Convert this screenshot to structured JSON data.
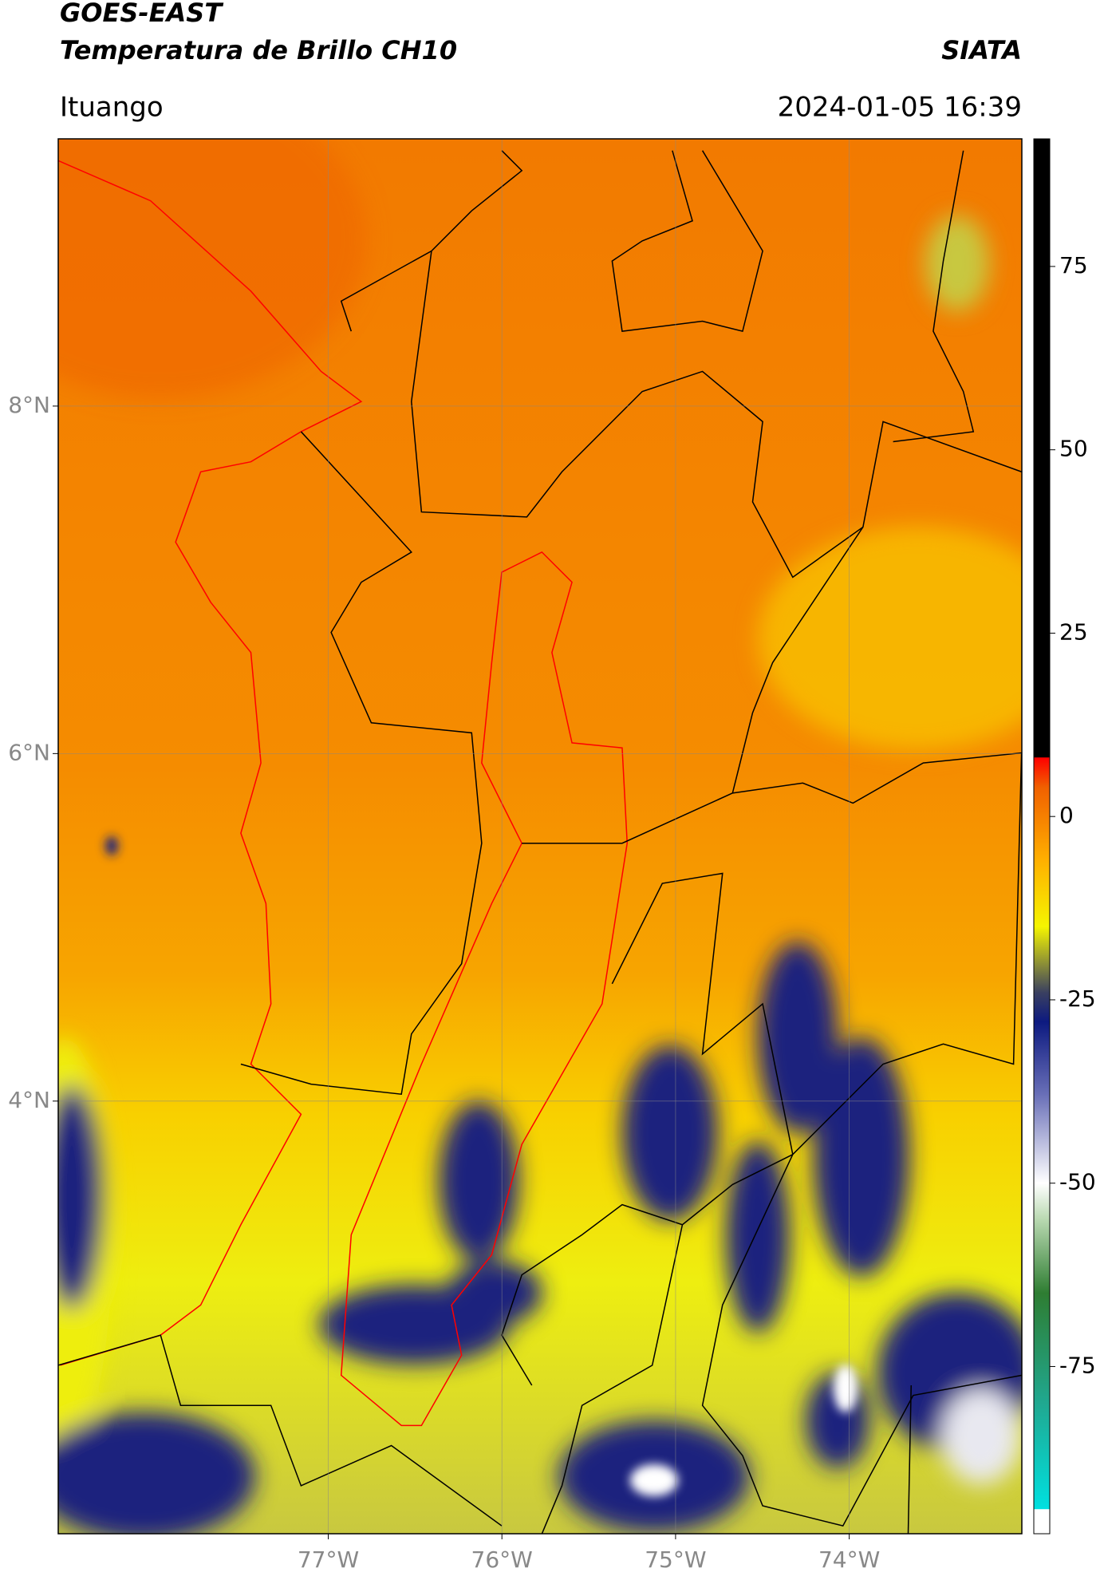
{
  "chart_data": {
    "type": "map",
    "title_lines": [
      "GOES-EAST",
      "Temperatura de Brillo CH10"
    ],
    "source": "SIATA",
    "subtitle": "Ituango",
    "date": "2024-01-05 16:39",
    "xlim": [
      -78.555,
      -73.006
    ],
    "ylim": [
      1.51,
      9.538
    ],
    "xticks": [
      {
        "value": -77,
        "label": "77°W"
      },
      {
        "value": -76,
        "label": "76°W"
      },
      {
        "value": -75,
        "label": "75°W"
      },
      {
        "value": -74,
        "label": "74°W"
      }
    ],
    "yticks": [
      {
        "value": 4,
        "label": "4°N"
      },
      {
        "value": 6,
        "label": "6°N"
      },
      {
        "value": 8,
        "label": "8°N"
      }
    ],
    "grid": true,
    "colorbar": {
      "lim": [
        -97.8,
        92.4
      ],
      "ticks": [
        75,
        50,
        25,
        0,
        -25,
        -50,
        -75
      ],
      "colormap": [
        {
          "value": -97.8,
          "color": "#ffffff"
        },
        {
          "value": -94.5,
          "color": "#ffffff"
        },
        {
          "value": -94.4,
          "color": "#00e0e0"
        },
        {
          "value": -80,
          "color": "#20a890"
        },
        {
          "value": -65,
          "color": "#2e7d32"
        },
        {
          "value": -55,
          "color": "#b8d8b0"
        },
        {
          "value": -50,
          "color": "#ffffff"
        },
        {
          "value": -38,
          "color": "#6a70b8"
        },
        {
          "value": -28,
          "color": "#0d1a80"
        },
        {
          "value": -24,
          "color": "#3a4060"
        },
        {
          "value": -15,
          "color": "#f5f500"
        },
        {
          "value": -6,
          "color": "#ffb000"
        },
        {
          "value": 4,
          "color": "#f06000"
        },
        {
          "value": 8,
          "color": "#ff0000"
        },
        {
          "value": 8.1,
          "color": "#000000"
        },
        {
          "value": 92.4,
          "color": "#000000"
        }
      ]
    }
  }
}
